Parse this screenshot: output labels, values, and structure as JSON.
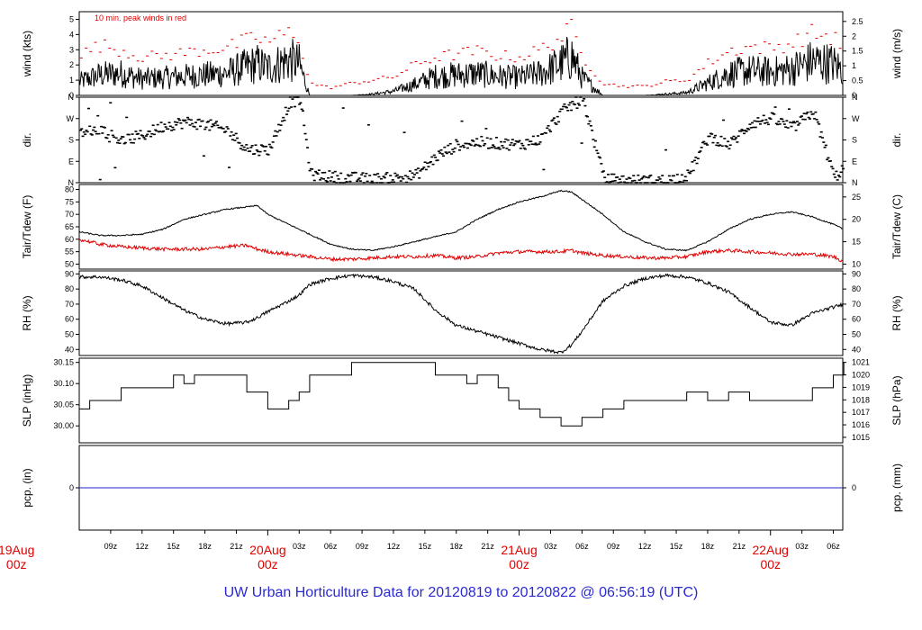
{
  "footer": "UW Urban Horticulture Data for 20120819  to  20120822 @ 06:56:19  (UTC)",
  "colors": {
    "main": "#000000",
    "peak": "#e00000",
    "dew": "#e00000",
    "pcp": "#2222cc",
    "footer": "#2a2ad0"
  },
  "chart_data": [
    {
      "type": "line",
      "id": "wind",
      "ylabel": "wind (kts)",
      "ylabel_right": "wind (m/s)",
      "ylim": [
        0,
        5.5
      ],
      "y_ticks": [
        0,
        1,
        2,
        3,
        4,
        5
      ],
      "y_ticks_right": [
        "0",
        "0.5",
        "1",
        "1.5",
        "2",
        "2.5"
      ],
      "annotation": "10 min. peak winds in red",
      "series": [
        {
          "name": "wind speed",
          "x": [
            6,
            8,
            10,
            12,
            14,
            16,
            18,
            20,
            22,
            23,
            24,
            26,
            27,
            28,
            30,
            32,
            34,
            36,
            38,
            40,
            42,
            44,
            46,
            48,
            50,
            52,
            53,
            54,
            56,
            58,
            60,
            62,
            64,
            66,
            68,
            70,
            72,
            74,
            76,
            78,
            79
          ],
          "y": [
            1.0,
            1.5,
            1.6,
            1.2,
            1.3,
            1.4,
            1.5,
            1.6,
            2.1,
            2.3,
            2.0,
            2.6,
            2.3,
            0.0,
            0.0,
            0.0,
            0.1,
            0.3,
            0.8,
            1.4,
            1.5,
            1.6,
            1.4,
            1.3,
            1.6,
            2.3,
            2.9,
            1.3,
            0.0,
            0.0,
            0.0,
            0.1,
            0.2,
            0.9,
            1.6,
            1.8,
            1.7,
            1.9,
            2.5,
            2.3,
            1.8
          ]
        },
        {
          "name": "10 min. peak winds",
          "x": [
            6,
            8,
            10,
            12,
            14,
            16,
            18,
            20,
            22,
            23,
            24,
            26,
            27,
            28,
            30,
            32,
            34,
            36,
            38,
            40,
            42,
            44,
            46,
            48,
            50,
            52,
            53,
            54,
            56,
            58,
            60,
            62,
            64,
            66,
            68,
            70,
            72,
            74,
            76,
            78,
            79
          ],
          "y": [
            2.6,
            3.3,
            3.0,
            2.5,
            2.6,
            2.8,
            3.0,
            3.1,
            3.6,
            3.8,
            3.5,
            4.1,
            3.8,
            0.8,
            0.5,
            0.8,
            1.0,
            1.2,
            2.0,
            2.5,
            2.7,
            2.9,
            2.6,
            2.5,
            3.0,
            3.8,
            4.4,
            2.6,
            0.8,
            0.6,
            0.6,
            0.9,
            1.0,
            2.1,
            2.9,
            3.2,
            3.1,
            3.4,
            4.1,
            3.8,
            3.1
          ]
        }
      ]
    },
    {
      "type": "scatter",
      "id": "dir",
      "ylabel": "dir.",
      "ylabel_right": "dir.",
      "ylim": [
        0,
        360
      ],
      "y_ticks": [
        "N",
        "E",
        "S",
        "W",
        "N"
      ],
      "y_tick_values": [
        0,
        90,
        180,
        270,
        360
      ],
      "series": [
        {
          "name": "direction",
          "x": [
            6,
            8,
            10,
            12,
            14,
            16,
            18,
            20,
            22,
            23,
            24,
            26,
            27,
            28,
            30,
            32,
            34,
            36,
            38,
            40,
            42,
            44,
            46,
            48,
            50,
            52,
            53,
            54,
            56,
            58,
            60,
            62,
            64,
            66,
            68,
            70,
            72,
            74,
            76,
            78,
            79
          ],
          "y": [
            210,
            225,
            175,
            200,
            240,
            255,
            245,
            220,
            140,
            140,
            140,
            340,
            350,
            35,
            25,
            20,
            15,
            20,
            30,
            110,
            160,
            170,
            165,
            160,
            185,
            300,
            330,
            350,
            15,
            10,
            8,
            10,
            30,
            195,
            160,
            250,
            270,
            230,
            300,
            20,
            70
          ]
        }
      ]
    },
    {
      "type": "line",
      "id": "temp",
      "ylabel": "Tair/Tdew (F)",
      "ylabel_right": "Tair/Tdew (C)",
      "ylim": [
        48,
        82
      ],
      "y_ticks": [
        50,
        55,
        60,
        65,
        70,
        75,
        80
      ],
      "y_ticks_right": [
        "10",
        "15",
        "20",
        "25"
      ],
      "series": [
        {
          "name": "Tair",
          "x": [
            6,
            8,
            10,
            12,
            14,
            16,
            18,
            20,
            22,
            23,
            24,
            26,
            28,
            30,
            32,
            34,
            36,
            38,
            40,
            42,
            44,
            46,
            48,
            50,
            52,
            53,
            54,
            56,
            58,
            60,
            62,
            64,
            66,
            68,
            70,
            72,
            74,
            76,
            78,
            79
          ],
          "y": [
            63,
            61.5,
            61.5,
            62,
            64,
            68,
            70,
            72,
            73,
            73.5,
            70,
            66,
            62,
            58,
            56,
            55.5,
            57,
            59,
            61,
            63,
            68,
            72,
            75,
            77,
            79.5,
            79,
            76,
            70,
            63,
            59,
            56,
            55.5,
            59,
            64,
            68,
            70,
            71,
            69,
            66,
            64
          ]
        },
        {
          "name": "Tdew",
          "x": [
            6,
            8,
            10,
            12,
            14,
            16,
            18,
            20,
            22,
            23,
            24,
            26,
            28,
            30,
            32,
            34,
            36,
            38,
            40,
            42,
            44,
            46,
            48,
            50,
            52,
            53,
            54,
            56,
            58,
            60,
            62,
            64,
            66,
            68,
            70,
            72,
            74,
            76,
            78,
            79
          ],
          "y": [
            60,
            58,
            57,
            56.5,
            56,
            56,
            56,
            57,
            57.5,
            56,
            55,
            54,
            53,
            52,
            52,
            52.5,
            53,
            53,
            53.5,
            52.5,
            53,
            54.5,
            55,
            55,
            55,
            55.5,
            54.5,
            53.5,
            53,
            52.5,
            52.5,
            53,
            55,
            55.5,
            55,
            54.5,
            54,
            54,
            53,
            51
          ]
        }
      ]
    },
    {
      "type": "line",
      "id": "rh",
      "ylabel": "RH (%)",
      "ylabel_right": "RH (%)",
      "ylim": [
        36,
        92
      ],
      "y_ticks": [
        40,
        50,
        60,
        70,
        80,
        90
      ],
      "series": [
        {
          "name": "RH",
          "x": [
            6,
            8,
            10,
            12,
            14,
            16,
            18,
            20,
            22,
            23,
            24,
            26,
            27,
            28,
            30,
            32,
            34,
            36,
            38,
            40,
            42,
            44,
            46,
            48,
            50,
            52,
            53,
            54,
            56,
            58,
            60,
            62,
            64,
            66,
            68,
            70,
            72,
            74,
            76,
            78,
            79
          ],
          "y": [
            88,
            88,
            86,
            82,
            74,
            66,
            60,
            57,
            58,
            61,
            65,
            72,
            76,
            83,
            87,
            89,
            88,
            85,
            80,
            66,
            56,
            52,
            48,
            44,
            40,
            38,
            43,
            52,
            72,
            82,
            87,
            89,
            88,
            84,
            78,
            68,
            58,
            56,
            64,
            68,
            70
          ]
        }
      ]
    },
    {
      "type": "line",
      "id": "slp",
      "ylabel": "SLP (inHg)",
      "ylabel_right": "SLP (hPa)",
      "ylim": [
        29.96,
        30.16
      ],
      "y_ticks": [
        "30.00",
        "30.05",
        "30.10",
        "30.15"
      ],
      "y_tick_values": [
        30.0,
        30.05,
        30.1,
        30.15
      ],
      "y_ticks_right": [
        "1015",
        "1016",
        "1017",
        "1018",
        "1019",
        "1020",
        "1021"
      ],
      "series": [
        {
          "name": "SLP",
          "x": [
            6,
            7,
            10,
            15,
            16,
            17,
            22,
            24,
            26,
            27,
            28,
            32,
            34,
            40,
            42,
            43,
            44,
            46,
            47,
            48,
            50,
            52,
            54,
            56,
            58,
            64,
            66,
            68,
            70,
            72,
            76,
            78,
            79
          ],
          "y": [
            30.04,
            30.06,
            30.09,
            30.12,
            30.1,
            30.12,
            30.08,
            30.04,
            30.06,
            30.08,
            30.12,
            30.15,
            30.15,
            30.12,
            30.12,
            30.1,
            30.12,
            30.09,
            30.06,
            30.04,
            30.02,
            30.0,
            30.02,
            30.04,
            30.06,
            30.08,
            30.06,
            30.08,
            30.06,
            30.06,
            30.09,
            30.12,
            30.15
          ]
        }
      ]
    },
    {
      "type": "line",
      "id": "pcp",
      "ylabel": "pcp. (in)",
      "ylabel_right": "pcp. (mm)",
      "y_ticks": [
        "0"
      ],
      "y_ticks_right": [
        "0"
      ],
      "series": [
        {
          "name": "pcp",
          "x": [
            6,
            79
          ],
          "y": [
            0,
            0
          ]
        }
      ]
    }
  ],
  "x_axis": {
    "hour_labels": [
      {
        "h": 9,
        "label": "09z"
      },
      {
        "h": 12,
        "label": "12z"
      },
      {
        "h": 15,
        "label": "15z"
      },
      {
        "h": 18,
        "label": "18z"
      },
      {
        "h": 21,
        "label": "21z"
      },
      {
        "h": 27,
        "label": "03z"
      },
      {
        "h": 30,
        "label": "06z"
      },
      {
        "h": 33,
        "label": "09z"
      },
      {
        "h": 36,
        "label": "12z"
      },
      {
        "h": 39,
        "label": "15z"
      },
      {
        "h": 42,
        "label": "18z"
      },
      {
        "h": 45,
        "label": "21z"
      },
      {
        "h": 51,
        "label": "03z"
      },
      {
        "h": 54,
        "label": "06z"
      },
      {
        "h": 57,
        "label": "09z"
      },
      {
        "h": 60,
        "label": "12z"
      },
      {
        "h": 63,
        "label": "15z"
      },
      {
        "h": 66,
        "label": "18z"
      },
      {
        "h": 69,
        "label": "21z"
      },
      {
        "h": 75,
        "label": "03z"
      },
      {
        "h": 78,
        "label": "06z"
      }
    ],
    "date_labels": [
      {
        "h": 0,
        "line1": "19Aug",
        "line2": "00z"
      },
      {
        "h": 24,
        "line1": "20Aug",
        "line2": "00z"
      },
      {
        "h": 48,
        "line1": "21Aug",
        "line2": "00z"
      },
      {
        "h": 72,
        "line1": "22Aug",
        "line2": "00z"
      }
    ],
    "x_range_hours": [
      6,
      78.9
    ]
  }
}
